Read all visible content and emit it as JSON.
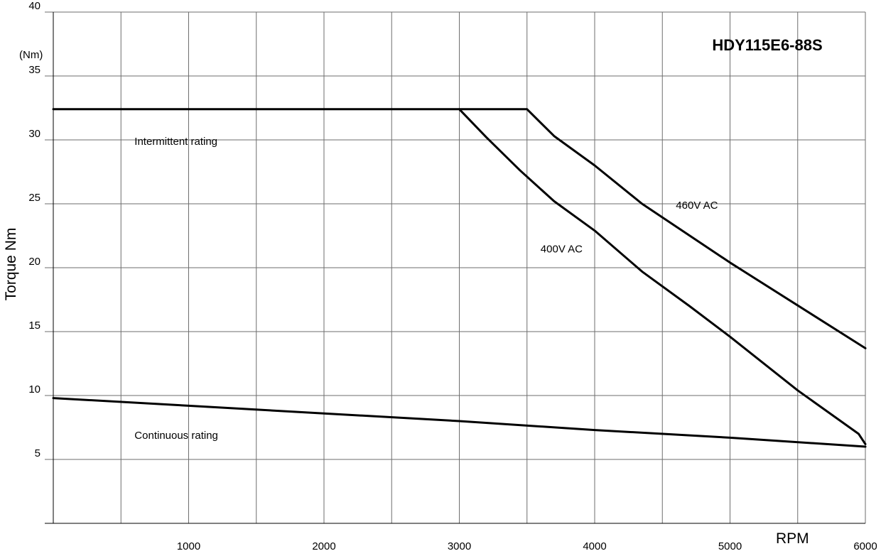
{
  "chart_data": {
    "type": "line",
    "title": "HDY115E6-88S",
    "xlabel": "RPM",
    "ylabel": "Torque Nm",
    "yunit": "(Nm)",
    "xlim": [
      0,
      6000
    ],
    "ylim": [
      0,
      40
    ],
    "grid": true,
    "x_ticks": [
      {
        "value": 1000,
        "label": "1000"
      },
      {
        "value": 2000,
        "label": "2000"
      },
      {
        "value": 3000,
        "label": "3000"
      },
      {
        "value": 4000,
        "label": "4000"
      },
      {
        "value": 5000,
        "label": "5000"
      },
      {
        "value": 6000,
        "label": "6000"
      }
    ],
    "y_ticks": [
      {
        "value": 5,
        "label": "5"
      },
      {
        "value": 10,
        "label": "10"
      },
      {
        "value": 15,
        "label": "15"
      },
      {
        "value": 20,
        "label": "20"
      },
      {
        "value": 25,
        "label": "25"
      },
      {
        "value": 30,
        "label": "30"
      },
      {
        "value": 35,
        "label": "35"
      },
      {
        "value": 40,
        "label": "40"
      }
    ],
    "series": [
      {
        "key": "intermittent-460v",
        "x": [
          0,
          3000,
          3500,
          3700,
          4000,
          4350,
          5000,
          6000
        ],
        "y": [
          32.4,
          32.4,
          32.4,
          30.3,
          28.0,
          25.0,
          20.4,
          13.7
        ]
      },
      {
        "key": "intermittent-400v",
        "x": [
          3000,
          3200,
          3450,
          3700,
          4000,
          4350,
          4700,
          5000,
          5500,
          5950,
          6000
        ],
        "y": [
          32.4,
          30.2,
          27.6,
          25.2,
          22.9,
          19.7,
          17.0,
          14.6,
          10.4,
          7.0,
          6.2
        ]
      },
      {
        "key": "continuous",
        "x": [
          0,
          1000,
          2000,
          3000,
          4000,
          5000,
          6000
        ],
        "y": [
          9.8,
          9.2,
          8.6,
          8.0,
          7.3,
          6.7,
          6.0
        ]
      }
    ],
    "annotations": [
      {
        "key": "intermittent",
        "text": "Intermittent rating",
        "x": 600,
        "y": 29.6,
        "anchor": "start"
      },
      {
        "key": "continuous",
        "text": "Continuous rating",
        "x": 600,
        "y": 6.6,
        "anchor": "start"
      },
      {
        "key": "460v",
        "text": "460V AC",
        "x": 4600,
        "y": 24.6,
        "anchor": "start"
      },
      {
        "key": "400v",
        "text": "400V AC",
        "x": 3600,
        "y": 21.2,
        "anchor": "start"
      }
    ]
  }
}
